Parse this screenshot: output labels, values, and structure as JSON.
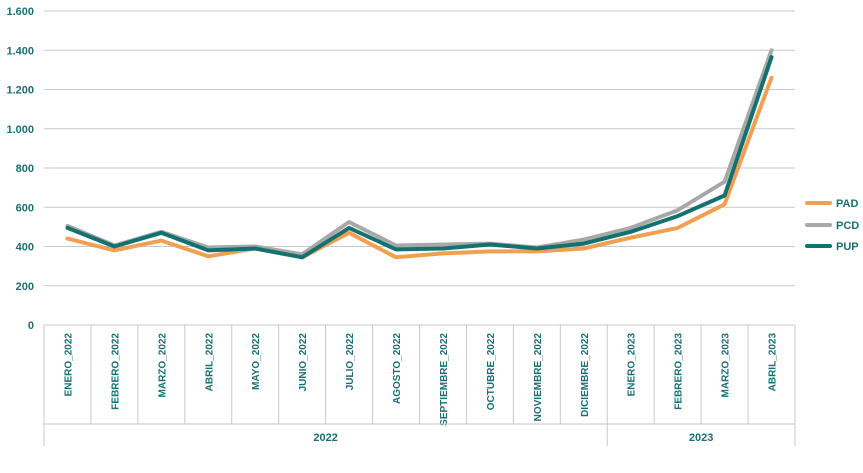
{
  "chart_data": {
    "type": "line",
    "title": "",
    "xlabel": "",
    "ylabel": "",
    "ylim": [
      0,
      1600
    ],
    "yticks": [
      0,
      200,
      400,
      600,
      800,
      1000,
      1200,
      1400,
      1600
    ],
    "ytick_labels": [
      "0",
      "200",
      "400",
      "600",
      "800",
      "1.000",
      "1.200",
      "1.400",
      "1.600"
    ],
    "categories": [
      "ENERO_2022",
      "FEBRERO_2022",
      "MARZO_2022",
      "ABRIL_2022",
      "MAYO_2022",
      "JUNIO_2022",
      "JULIO_2022",
      "AGOSTO_2022",
      "SEPTIEMBRE_2022",
      "OCTUBRE_2022",
      "NOVIEMBRE_2022",
      "DICIEMBRE_2022",
      "ENERO_2023",
      "FEBRERO_2023",
      "MARZO_2023",
      "ABRIL_2023"
    ],
    "groups": [
      {
        "label": "2022",
        "count": 12
      },
      {
        "label": "2023",
        "count": 4
      }
    ],
    "series": [
      {
        "name": "PAD",
        "color": "#f0a050",
        "values": [
          440,
          380,
          430,
          350,
          390,
          345,
          470,
          345,
          365,
          375,
          375,
          390,
          445,
          495,
          615,
          1260
        ]
      },
      {
        "name": "PCD",
        "color": "#a8a8a8",
        "values": [
          505,
          405,
          475,
          395,
          400,
          360,
          525,
          405,
          410,
          415,
          395,
          435,
          495,
          585,
          730,
          1400
        ]
      },
      {
        "name": "PUP",
        "color": "#13716f",
        "values": [
          495,
          400,
          470,
          380,
          390,
          345,
          495,
          385,
          390,
          410,
          390,
          415,
          475,
          555,
          660,
          1365
        ]
      }
    ],
    "grid": true,
    "legend_position": "right"
  }
}
